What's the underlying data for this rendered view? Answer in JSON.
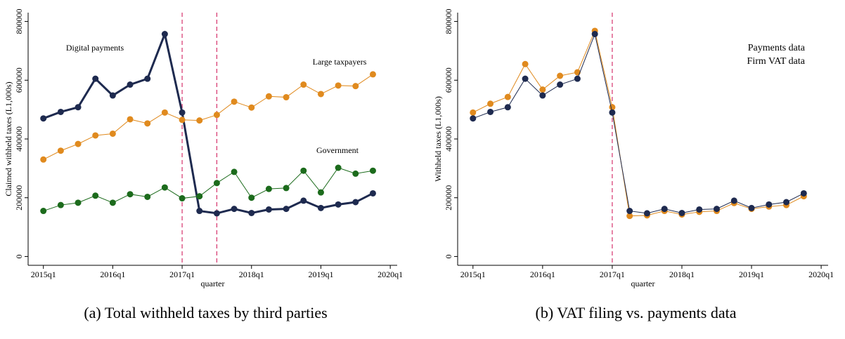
{
  "chart_data": [
    {
      "type": "line",
      "caption": "(a) Total withheld taxes by third parties",
      "x_label": "quarter",
      "y_label": "Claimed withheld taxes (L1,000s)",
      "x": [
        2015,
        2015.25,
        2015.5,
        2015.75,
        2016,
        2016.25,
        2016.5,
        2016.75,
        2017,
        2017.25,
        2017.5,
        2017.75,
        2018,
        2018.25,
        2018.5,
        2018.75,
        2019,
        2019.25,
        2019.5,
        2019.75
      ],
      "series": [
        {
          "name": "Digital payments",
          "color": "#1e2a4f",
          "values": [
            470000,
            492000,
            508000,
            605000,
            548000,
            585000,
            605000,
            757000,
            490000,
            155000,
            147000,
            162000,
            148000,
            160000,
            162000,
            190000,
            165000,
            177000,
            185000,
            215000
          ]
        },
        {
          "name": "Large taxpayers",
          "color": "#e08a1e",
          "values": [
            330000,
            360000,
            383000,
            412000,
            418000,
            467000,
            453000,
            490000,
            465000,
            463000,
            482000,
            527000,
            507000,
            545000,
            542000,
            585000,
            553000,
            582000,
            580000,
            620000
          ]
        },
        {
          "name": "Government",
          "color": "#1c6b1c",
          "values": [
            155000,
            175000,
            183000,
            207000,
            183000,
            212000,
            203000,
            235000,
            198000,
            205000,
            250000,
            288000,
            200000,
            230000,
            233000,
            292000,
            218000,
            302000,
            282000,
            292000
          ]
        }
      ],
      "vlines": [
        2017,
        2017.5
      ],
      "vline_color": "#d6336c",
      "xlim": [
        2014.78,
        2020.1
      ],
      "xticks": [
        {
          "value": 2015,
          "label": "2015q1"
        },
        {
          "value": 2016,
          "label": "2016q1"
        },
        {
          "value": 2017,
          "label": "2017q1"
        },
        {
          "value": 2018,
          "label": "2018q1"
        },
        {
          "value": 2019,
          "label": "2019q1"
        },
        {
          "value": 2020,
          "label": "2020q1"
        }
      ],
      "ylim": [
        -30000,
        830000
      ],
      "yticks": [
        0,
        200000,
        400000,
        600000,
        800000
      ]
    },
    {
      "type": "line",
      "caption": "(b) VAT filing vs. payments data",
      "x_label": "quarter",
      "y_label": "Withheld taxes (L1,000s)",
      "x": [
        2015,
        2015.25,
        2015.5,
        2015.75,
        2016,
        2016.25,
        2016.5,
        2016.75,
        2017,
        2017.25,
        2017.5,
        2017.75,
        2018,
        2018.25,
        2018.5,
        2018.75,
        2019,
        2019.25,
        2019.5,
        2019.75
      ],
      "series": [
        {
          "name": "Payments data",
          "color": "#e08a1e",
          "values": [
            490000,
            520000,
            543000,
            655000,
            568000,
            615000,
            627000,
            768000,
            508000,
            138000,
            140000,
            155000,
            143000,
            152000,
            155000,
            182000,
            162000,
            170000,
            175000,
            205000
          ]
        },
        {
          "name": "Firm VAT data",
          "color": "#1e2a4f",
          "values": [
            470000,
            492000,
            508000,
            605000,
            548000,
            585000,
            605000,
            757000,
            490000,
            155000,
            147000,
            162000,
            148000,
            160000,
            162000,
            190000,
            165000,
            177000,
            185000,
            215000
          ]
        }
      ],
      "vlines": [
        2017
      ],
      "vline_color": "#d6336c",
      "xlim": [
        2014.78,
        2020.1
      ],
      "xticks": [
        {
          "value": 2015,
          "label": "2015q1"
        },
        {
          "value": 2016,
          "label": "2016q1"
        },
        {
          "value": 2017,
          "label": "2017q1"
        },
        {
          "value": 2018,
          "label": "2018q1"
        },
        {
          "value": 2019,
          "label": "2019q1"
        },
        {
          "value": 2020,
          "label": "2020q1"
        }
      ],
      "ylim": [
        -30000,
        830000
      ],
      "yticks": [
        0,
        200000,
        400000,
        600000,
        800000
      ]
    }
  ]
}
